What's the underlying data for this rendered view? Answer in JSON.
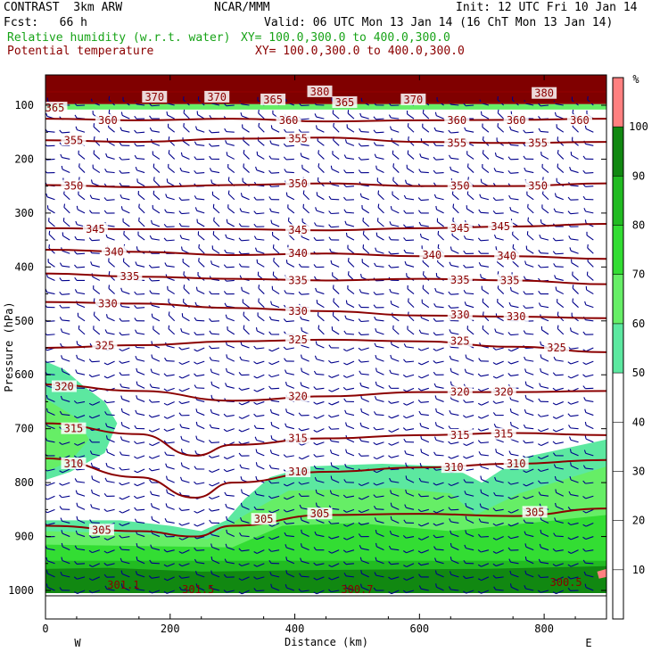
{
  "header": {
    "model": "CONTRAST  3km ARW",
    "institution": "NCAR/MMM",
    "init": "Init: 12 UTC Fri 10 Jan 14",
    "fcst": "Fcst:   66 h",
    "valid": "Valid: 06 UTC Mon 13 Jan 14 (16 ChT Mon 13 Jan 14)",
    "field1_name": "Relative humidity (w.r.t. water)",
    "field1_xy": "XY= 100.0,300.0 to 400.0,300.0",
    "field2_name": "Potential temperature",
    "field2_xy": "XY= 100.0,300.0 to 400.0,300.0"
  },
  "colors": {
    "theta_contour": "#8b0000",
    "wind_barbs": "#00008b",
    "header_field1": "#17a317",
    "header_field2": "#8b0000",
    "rh_50_60": "#5ce8a0",
    "rh_60_70": "#66ee66",
    "rh_70_80": "#33dd33",
    "rh_80_90": "#22bb22",
    "rh_90_100": "#118811",
    "rh_100_plus": "#ff8080",
    "top_band": "#800000"
  },
  "chart_data": {
    "type": "cross-section",
    "xlabel": "Distance (km)",
    "ylabel": "Pressure (hPa)",
    "xlim": [
      0,
      900
    ],
    "ylim": [
      1030,
      50
    ],
    "x_ticks": [
      "0",
      "200",
      "400",
      "600",
      "800"
    ],
    "y_ticks": [
      "100",
      "200",
      "300",
      "400",
      "500",
      "600",
      "700",
      "800",
      "900",
      "1000"
    ],
    "left_end_label": "W",
    "right_end_label": "E",
    "colorbar": {
      "unit": "%",
      "levels": [
        "10",
        "20",
        "30",
        "40",
        "50",
        "60",
        "70",
        "80",
        "90",
        "100"
      ]
    },
    "rh_regions": [
      {
        "level": "50-60",
        "pts": [
          [
            0,
            575
          ],
          [
            30,
            590
          ],
          [
            60,
            620
          ],
          [
            95,
            650
          ],
          [
            115,
            690
          ],
          [
            95,
            745
          ],
          [
            40,
            780
          ],
          [
            0,
            795
          ]
        ]
      },
      {
        "level": "50-60",
        "pts": [
          [
            0,
            870
          ],
          [
            120,
            870
          ],
          [
            200,
            880
          ],
          [
            250,
            890
          ],
          [
            290,
            870
          ],
          [
            320,
            830
          ],
          [
            360,
            790
          ],
          [
            420,
            770
          ],
          [
            540,
            765
          ],
          [
            650,
            770
          ],
          [
            700,
            800
          ],
          [
            760,
            755
          ],
          [
            820,
            740
          ],
          [
            900,
            720
          ],
          [
            900,
            1005
          ],
          [
            0,
            1005
          ]
        ]
      },
      {
        "level": "60-70",
        "pts": [
          [
            0,
            645
          ],
          [
            50,
            680
          ],
          [
            70,
            720
          ],
          [
            40,
            760
          ],
          [
            0,
            780
          ]
        ]
      },
      {
        "level": "60-70",
        "pts": [
          [
            0,
            890
          ],
          [
            150,
            895
          ],
          [
            260,
            905
          ],
          [
            320,
            860
          ],
          [
            390,
            815
          ],
          [
            560,
            810
          ],
          [
            650,
            820
          ],
          [
            690,
            860
          ],
          [
            760,
            820
          ],
          [
            900,
            770
          ],
          [
            900,
            1005
          ],
          [
            0,
            1005
          ]
        ]
      },
      {
        "level": "70-80",
        "pts": [
          [
            0,
            915
          ],
          [
            300,
            920
          ],
          [
            380,
            880
          ],
          [
            500,
            875
          ],
          [
            650,
            890
          ],
          [
            900,
            860
          ],
          [
            900,
            1005
          ],
          [
            0,
            1005
          ]
        ]
      },
      {
        "level": "80-90",
        "pts": [
          [
            0,
            945
          ],
          [
            900,
            945
          ],
          [
            900,
            1005
          ],
          [
            0,
            1005
          ]
        ]
      },
      {
        "level": "90-100",
        "pts": [
          [
            0,
            960
          ],
          [
            100,
            958
          ],
          [
            250,
            965
          ],
          [
            450,
            962
          ],
          [
            700,
            960
          ],
          [
            900,
            955
          ],
          [
            900,
            1005
          ],
          [
            0,
            1005
          ]
        ]
      },
      {
        "level": "100+",
        "pts": [
          [
            885,
            965
          ],
          [
            900,
            960
          ],
          [
            900,
            975
          ],
          [
            888,
            978
          ]
        ]
      }
    ],
    "theta_contours": [
      {
        "value": 370,
        "x": [
          0,
          900
        ],
        "p": [
          75,
          75
        ]
      },
      {
        "value": 365,
        "x": [
          0,
          900
        ],
        "p": [
          95,
          95
        ]
      },
      {
        "value": 360,
        "x": [
          0,
          150,
          300,
          450,
          600,
          750,
          900
        ],
        "p": [
          125,
          128,
          125,
          130,
          128,
          127,
          125
        ]
      },
      {
        "value": 355,
        "x": [
          0,
          150,
          300,
          450,
          600,
          750,
          900
        ],
        "p": [
          165,
          168,
          162,
          160,
          168,
          170,
          168
        ]
      },
      {
        "value": 350,
        "x": [
          0,
          150,
          300,
          450,
          600,
          750,
          900
        ],
        "p": [
          248,
          252,
          248,
          245,
          250,
          250,
          245
        ]
      },
      {
        "value": 345,
        "x": [
          0,
          150,
          300,
          450,
          600,
          750,
          900
        ],
        "p": [
          328,
          330,
          330,
          332,
          328,
          325,
          320
        ]
      },
      {
        "value": 340,
        "x": [
          0,
          150,
          300,
          450,
          600,
          750,
          900
        ],
        "p": [
          368,
          372,
          378,
          375,
          380,
          380,
          385
        ]
      },
      {
        "value": 335,
        "x": [
          0,
          150,
          300,
          450,
          600,
          750,
          900
        ],
        "p": [
          412,
          418,
          422,
          425,
          422,
          425,
          432
        ]
      },
      {
        "value": 330,
        "x": [
          0,
          150,
          300,
          450,
          600,
          750,
          900
        ],
        "p": [
          465,
          468,
          476,
          482,
          490,
          492,
          495
        ]
      },
      {
        "value": 325,
        "x": [
          0,
          150,
          300,
          450,
          600,
          750,
          900
        ],
        "p": [
          550,
          545,
          538,
          535,
          538,
          548,
          558
        ]
      },
      {
        "value": 320,
        "x": [
          0,
          150,
          300,
          450,
          600,
          750,
          900
        ],
        "p": [
          618,
          630,
          648,
          640,
          632,
          632,
          630
        ]
      },
      {
        "value": 315,
        "x": [
          0,
          150,
          240,
          300,
          450,
          600,
          750,
          900
        ],
        "p": [
          690,
          710,
          750,
          730,
          718,
          712,
          708,
          712
        ]
      },
      {
        "value": 310,
        "x": [
          0,
          150,
          240,
          300,
          450,
          600,
          750,
          900
        ],
        "p": [
          755,
          790,
          828,
          800,
          780,
          772,
          765,
          758
        ]
      },
      {
        "value": 305,
        "x": [
          0,
          150,
          240,
          300,
          450,
          600,
          750,
          900
        ],
        "p": [
          880,
          890,
          900,
          880,
          860,
          858,
          862,
          848
        ]
      }
    ],
    "contour_labels": [
      {
        "text": "365",
        "x": 15,
        "p": 105
      },
      {
        "text": "370",
        "x": 175,
        "p": 85
      },
      {
        "text": "370",
        "x": 275,
        "p": 85
      },
      {
        "text": "365",
        "x": 365,
        "p": 90
      },
      {
        "text": "380",
        "x": 440,
        "p": 75
      },
      {
        "text": "365",
        "x": 480,
        "p": 95
      },
      {
        "text": "370",
        "x": 590,
        "p": 90
      },
      {
        "text": "380",
        "x": 800,
        "p": 78
      },
      {
        "text": "360",
        "x": 100,
        "p": 128
      },
      {
        "text": "360",
        "x": 390,
        "p": 128
      },
      {
        "text": "360",
        "x": 660,
        "p": 128
      },
      {
        "text": "360",
        "x": 755,
        "p": 128
      },
      {
        "text": "360",
        "x": 857,
        "p": 128
      },
      {
        "text": "355",
        "x": 45,
        "p": 165
      },
      {
        "text": "355",
        "x": 405,
        "p": 162
      },
      {
        "text": "355",
        "x": 660,
        "p": 170
      },
      {
        "text": "355",
        "x": 790,
        "p": 170
      },
      {
        "text": "350",
        "x": 45,
        "p": 250
      },
      {
        "text": "350",
        "x": 405,
        "p": 246
      },
      {
        "text": "350",
        "x": 665,
        "p": 250
      },
      {
        "text": "350",
        "x": 790,
        "p": 250
      },
      {
        "text": "345",
        "x": 80,
        "p": 330
      },
      {
        "text": "345",
        "x": 405,
        "p": 332
      },
      {
        "text": "345",
        "x": 665,
        "p": 328
      },
      {
        "text": "345",
        "x": 730,
        "p": 325
      },
      {
        "text": "340",
        "x": 110,
        "p": 372
      },
      {
        "text": "340",
        "x": 405,
        "p": 375
      },
      {
        "text": "340",
        "x": 620,
        "p": 378
      },
      {
        "text": "340",
        "x": 740,
        "p": 380
      },
      {
        "text": "335",
        "x": 135,
        "p": 418
      },
      {
        "text": "335",
        "x": 405,
        "p": 425
      },
      {
        "text": "335",
        "x": 665,
        "p": 424
      },
      {
        "text": "335",
        "x": 745,
        "p": 425
      },
      {
        "text": "330",
        "x": 100,
        "p": 468
      },
      {
        "text": "330",
        "x": 405,
        "p": 482
      },
      {
        "text": "330",
        "x": 665,
        "p": 489
      },
      {
        "text": "330",
        "x": 755,
        "p": 492
      },
      {
        "text": "325",
        "x": 95,
        "p": 546
      },
      {
        "text": "325",
        "x": 405,
        "p": 535
      },
      {
        "text": "325",
        "x": 665,
        "p": 538
      },
      {
        "text": "325",
        "x": 820,
        "p": 550
      },
      {
        "text": "320",
        "x": 30,
        "p": 622
      },
      {
        "text": "320",
        "x": 405,
        "p": 640
      },
      {
        "text": "320",
        "x": 665,
        "p": 632
      },
      {
        "text": "320",
        "x": 735,
        "p": 632
      },
      {
        "text": "315",
        "x": 45,
        "p": 700
      },
      {
        "text": "315",
        "x": 405,
        "p": 718
      },
      {
        "text": "315",
        "x": 665,
        "p": 712
      },
      {
        "text": "315",
        "x": 735,
        "p": 710
      },
      {
        "text": "310",
        "x": 45,
        "p": 765
      },
      {
        "text": "310",
        "x": 405,
        "p": 780
      },
      {
        "text": "310",
        "x": 655,
        "p": 772
      },
      {
        "text": "310",
        "x": 755,
        "p": 765
      },
      {
        "text": "305",
        "x": 90,
        "p": 888
      },
      {
        "text": "305",
        "x": 350,
        "p": 868
      },
      {
        "text": "305",
        "x": 440,
        "p": 858
      },
      {
        "text": "305",
        "x": 785,
        "p": 855
      }
    ],
    "surface_labels": [
      {
        "text": "301.1",
        "x": 125,
        "p": 990
      },
      {
        "text": "301.5",
        "x": 245,
        "p": 998
      },
      {
        "text": "300.7",
        "x": 500,
        "p": 998
      },
      {
        "text": "300.5",
        "x": 835,
        "p": 985
      }
    ]
  }
}
